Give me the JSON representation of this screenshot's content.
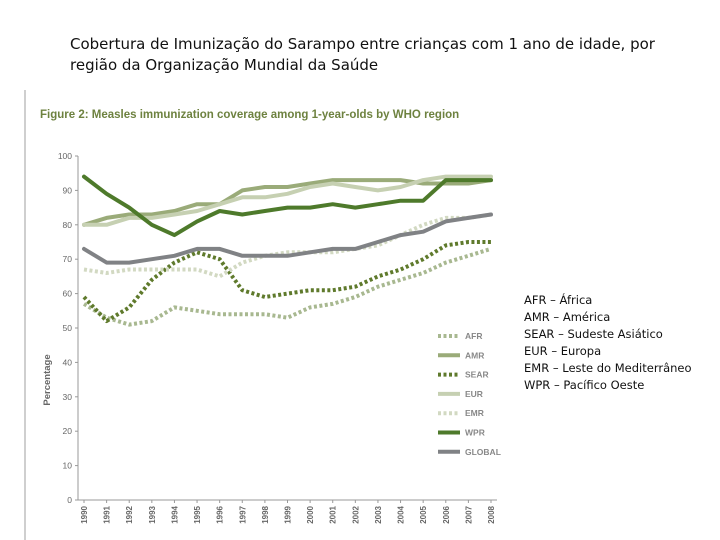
{
  "slide": {
    "title_line1": "Cobertura de Imunização do Sarampo entre crianças com 1 ano de idade, por",
    "title_line2": "região da Organização Mundial da Saúde"
  },
  "region_key": [
    "AFR – África",
    "AMR – América",
    "SEAR – Sudeste Asiático",
    "EUR – Europa",
    "EMR – Leste do Mediterrâneo",
    "WPR – Pacífico Oeste"
  ],
  "chart_data": {
    "type": "line",
    "title": "Figure 2: Measles immunization coverage among 1-year-olds by WHO region",
    "ylabel": "Percentage",
    "xlabel": "",
    "ylim": [
      0,
      100
    ],
    "yticks": [
      0,
      10,
      20,
      30,
      40,
      50,
      60,
      70,
      80,
      90,
      100
    ],
    "x": [
      1990,
      1991,
      1992,
      1993,
      1994,
      1995,
      1996,
      1997,
      1998,
      1999,
      2000,
      2001,
      2002,
      2003,
      2004,
      2005,
      2006,
      2007,
      2008
    ],
    "legend_position": "lower-right",
    "series": [
      {
        "name": "AFR",
        "color": "#a8b890",
        "dash": "dotted",
        "values": [
          57,
          53,
          51,
          52,
          56,
          55,
          54,
          54,
          54,
          53,
          56,
          57,
          59,
          62,
          64,
          66,
          69,
          71,
          73
        ]
      },
      {
        "name": "AMR",
        "color": "#9aab79",
        "dash": "solid",
        "values": [
          80,
          82,
          83,
          83,
          84,
          86,
          86,
          90,
          91,
          91,
          92,
          93,
          93,
          93,
          93,
          92,
          92,
          92,
          93
        ]
      },
      {
        "name": "SEAR",
        "color": "#5f7a2c",
        "dash": "dotted",
        "values": [
          59,
          52,
          56,
          64,
          69,
          72,
          70,
          61,
          59,
          60,
          61,
          61,
          62,
          65,
          67,
          70,
          74,
          75,
          75
        ]
      },
      {
        "name": "EUR",
        "color": "#c6d0b2",
        "dash": "solid",
        "values": [
          80,
          80,
          82,
          82,
          83,
          84,
          86,
          88,
          88,
          89,
          91,
          92,
          91,
          90,
          91,
          93,
          94,
          94,
          94
        ]
      },
      {
        "name": "EMR",
        "color": "#d2d9c2",
        "dash": "dotted",
        "values": [
          67,
          66,
          67,
          67,
          67,
          67,
          65,
          69,
          71,
          72,
          72,
          72,
          73,
          74,
          77,
          80,
          82,
          82,
          83
        ]
      },
      {
        "name": "WPR",
        "color": "#4e7a2b",
        "dash": "solid",
        "values": [
          94,
          89,
          85,
          80,
          77,
          81,
          84,
          83,
          84,
          85,
          85,
          86,
          85,
          86,
          87,
          87,
          93,
          93,
          93
        ]
      },
      {
        "name": "GLOBAL",
        "color": "#808285",
        "dash": "solid",
        "values": [
          73,
          69,
          69,
          70,
          71,
          73,
          73,
          71,
          71,
          71,
          72,
          73,
          73,
          75,
          77,
          78,
          81,
          82,
          83
        ]
      }
    ]
  }
}
